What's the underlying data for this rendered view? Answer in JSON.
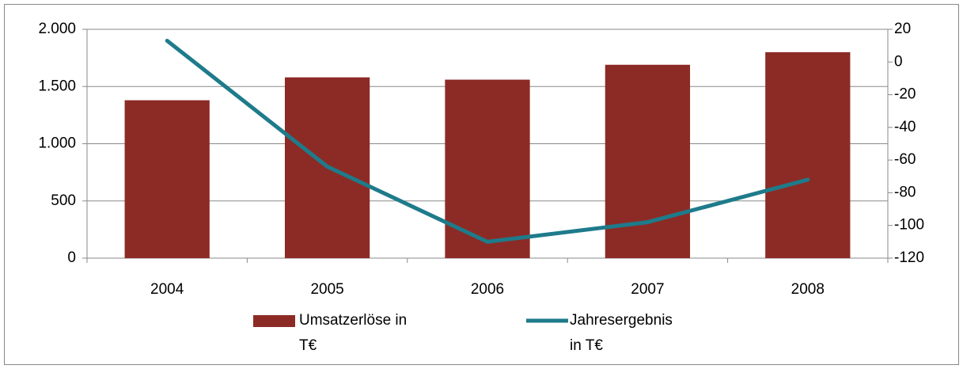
{
  "chart_data": {
    "type": "bar_line",
    "categories": [
      "2004",
      "2005",
      "2006",
      "2007",
      "2008"
    ],
    "series": [
      {
        "name": "Umsatzerlöse in T€",
        "type": "bar",
        "color": "#8c2b25",
        "values": [
          1380,
          1580,
          1560,
          1690,
          1800
        ]
      },
      {
        "name": "Jahresergebnis in T€",
        "type": "line",
        "axis": "y2",
        "color": "#1e7b8b",
        "values": [
          13,
          -64,
          -110,
          -98,
          -72
        ]
      }
    ],
    "ylim": [
      0,
      2000
    ],
    "yticks": [
      0,
      500,
      {
        "value": 1000,
        "label": "1.000"
      },
      {
        "value": 1500,
        "label": "1.500"
      },
      {
        "value": 2000,
        "label": "2.000"
      }
    ],
    "y2lim": [
      -120,
      20
    ],
    "y2ticks": [
      -120,
      -100,
      -80,
      -60,
      -40,
      -20,
      0,
      20
    ],
    "grid": true,
    "legend": "bottom"
  }
}
